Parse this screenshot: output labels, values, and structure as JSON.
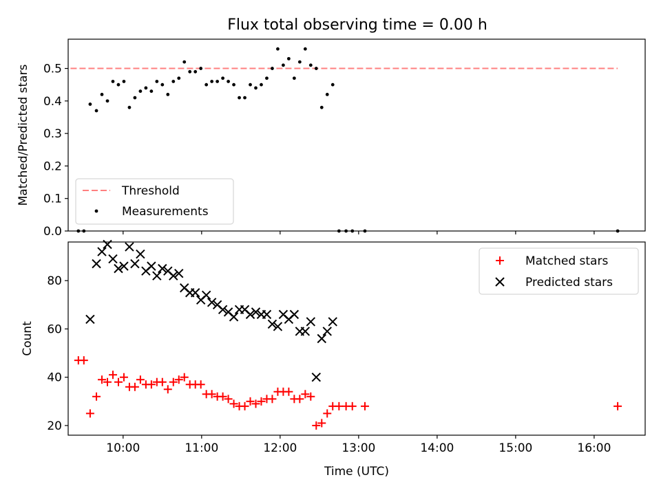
{
  "title": "Flux total observing time = 0.00 h",
  "colors": {
    "threshold": "#ff7f7f",
    "measurements": "#000000",
    "matched": "#ff0000",
    "predicted": "#000000"
  },
  "chart_data": [
    {
      "type": "scatter",
      "ylabel": "Matched/Predicted stars",
      "xlim": [
        9.3,
        16.65
      ],
      "ylim": [
        0,
        0.59
      ],
      "yticks": [
        0.0,
        0.1,
        0.2,
        0.3,
        0.4,
        0.5
      ],
      "legend": {
        "placement": "lower-left",
        "entries": [
          "Threshold",
          "Measurements"
        ]
      },
      "threshold": {
        "name": "Threshold",
        "value": 0.5,
        "x": [
          9.33,
          16.3
        ]
      },
      "series": [
        {
          "name": "Measurements",
          "points": [
            [
              9.43,
              0.0
            ],
            [
              9.5,
              0.0
            ],
            [
              9.58,
              0.39
            ],
            [
              9.66,
              0.37
            ],
            [
              9.73,
              0.42
            ],
            [
              9.8,
              0.4
            ],
            [
              9.87,
              0.46
            ],
            [
              9.94,
              0.45
            ],
            [
              10.01,
              0.46
            ],
            [
              10.08,
              0.38
            ],
            [
              10.15,
              0.41
            ],
            [
              10.22,
              0.43
            ],
            [
              10.29,
              0.44
            ],
            [
              10.36,
              0.43
            ],
            [
              10.43,
              0.46
            ],
            [
              10.5,
              0.45
            ],
            [
              10.57,
              0.42
            ],
            [
              10.64,
              0.46
            ],
            [
              10.71,
              0.47
            ],
            [
              10.78,
              0.52
            ],
            [
              10.85,
              0.49
            ],
            [
              10.92,
              0.49
            ],
            [
              10.99,
              0.5
            ],
            [
              11.06,
              0.45
            ],
            [
              11.13,
              0.46
            ],
            [
              11.2,
              0.46
            ],
            [
              11.27,
              0.47
            ],
            [
              11.34,
              0.46
            ],
            [
              11.41,
              0.45
            ],
            [
              11.48,
              0.41
            ],
            [
              11.55,
              0.41
            ],
            [
              11.62,
              0.45
            ],
            [
              11.69,
              0.44
            ],
            [
              11.76,
              0.45
            ],
            [
              11.83,
              0.47
            ],
            [
              11.9,
              0.5
            ],
            [
              11.97,
              0.56
            ],
            [
              12.04,
              0.51
            ],
            [
              12.11,
              0.53
            ],
            [
              12.18,
              0.47
            ],
            [
              12.25,
              0.52
            ],
            [
              12.32,
              0.56
            ],
            [
              12.39,
              0.51
            ],
            [
              12.46,
              0.5
            ],
            [
              12.53,
              0.38
            ],
            [
              12.6,
              0.42
            ],
            [
              12.67,
              0.45
            ],
            [
              12.75,
              0.0
            ],
            [
              12.84,
              0.0
            ],
            [
              12.92,
              0.0
            ],
            [
              13.08,
              0.0
            ],
            [
              16.3,
              0.0
            ]
          ]
        }
      ]
    },
    {
      "type": "scatter",
      "xlabel": "Time (UTC)",
      "ylabel": "Count",
      "xlim": [
        9.3,
        16.65
      ],
      "ylim": [
        16,
        96
      ],
      "yticks": [
        20,
        40,
        60,
        80
      ],
      "xticks": [
        "10:00",
        "11:00",
        "12:00",
        "13:00",
        "14:00",
        "15:00",
        "16:00"
      ],
      "xtick_values": [
        10,
        11,
        12,
        13,
        14,
        15,
        16
      ],
      "legend": {
        "placement": "top-right",
        "entries": [
          "Matched stars",
          "Predicted stars"
        ]
      },
      "series": [
        {
          "name": "Matched stars",
          "marker": "plus",
          "points": [
            [
              9.43,
              47
            ],
            [
              9.5,
              47
            ],
            [
              9.58,
              25
            ],
            [
              9.66,
              32
            ],
            [
              9.73,
              39
            ],
            [
              9.8,
              38
            ],
            [
              9.87,
              41
            ],
            [
              9.94,
              38
            ],
            [
              10.01,
              40
            ],
            [
              10.08,
              36
            ],
            [
              10.15,
              36
            ],
            [
              10.22,
              39
            ],
            [
              10.29,
              37
            ],
            [
              10.36,
              37
            ],
            [
              10.43,
              38
            ],
            [
              10.5,
              38
            ],
            [
              10.57,
              35
            ],
            [
              10.64,
              38
            ],
            [
              10.71,
              39
            ],
            [
              10.78,
              40
            ],
            [
              10.85,
              37
            ],
            [
              10.92,
              37
            ],
            [
              10.99,
              37
            ],
            [
              11.06,
              33
            ],
            [
              11.13,
              33
            ],
            [
              11.2,
              32
            ],
            [
              11.27,
              32
            ],
            [
              11.34,
              31
            ],
            [
              11.41,
              29
            ],
            [
              11.48,
              28
            ],
            [
              11.55,
              28
            ],
            [
              11.62,
              30
            ],
            [
              11.69,
              29
            ],
            [
              11.76,
              30
            ],
            [
              11.83,
              31
            ],
            [
              11.9,
              31
            ],
            [
              11.97,
              34
            ],
            [
              12.04,
              34
            ],
            [
              12.11,
              34
            ],
            [
              12.18,
              31
            ],
            [
              12.25,
              31
            ],
            [
              12.32,
              33
            ],
            [
              12.39,
              32
            ],
            [
              12.46,
              20
            ],
            [
              12.53,
              21
            ],
            [
              12.6,
              25
            ],
            [
              12.67,
              28
            ],
            [
              12.75,
              28
            ],
            [
              12.84,
              28
            ],
            [
              12.92,
              28
            ],
            [
              13.08,
              28
            ],
            [
              16.3,
              28
            ]
          ]
        },
        {
          "name": "Predicted stars",
          "marker": "x",
          "points": [
            [
              9.58,
              64
            ],
            [
              9.66,
              87
            ],
            [
              9.73,
              92
            ],
            [
              9.8,
              95
            ],
            [
              9.87,
              89
            ],
            [
              9.94,
              85
            ],
            [
              10.01,
              86
            ],
            [
              10.08,
              94
            ],
            [
              10.15,
              87
            ],
            [
              10.22,
              91
            ],
            [
              10.29,
              84
            ],
            [
              10.36,
              86
            ],
            [
              10.43,
              82
            ],
            [
              10.5,
              85
            ],
            [
              10.57,
              84
            ],
            [
              10.64,
              82
            ],
            [
              10.71,
              83
            ],
            [
              10.78,
              77
            ],
            [
              10.85,
              75
            ],
            [
              10.92,
              75
            ],
            [
              10.99,
              72
            ],
            [
              11.06,
              74
            ],
            [
              11.13,
              71
            ],
            [
              11.2,
              70
            ],
            [
              11.27,
              68
            ],
            [
              11.34,
              67
            ],
            [
              11.41,
              65
            ],
            [
              11.48,
              68
            ],
            [
              11.55,
              68
            ],
            [
              11.62,
              66
            ],
            [
              11.69,
              67
            ],
            [
              11.76,
              66
            ],
            [
              11.83,
              66
            ],
            [
              11.9,
              62
            ],
            [
              11.97,
              61
            ],
            [
              12.04,
              66
            ],
            [
              12.11,
              64
            ],
            [
              12.18,
              66
            ],
            [
              12.25,
              59
            ],
            [
              12.32,
              59
            ],
            [
              12.39,
              63
            ],
            [
              12.46,
              40
            ],
            [
              12.53,
              56
            ],
            [
              12.6,
              59
            ],
            [
              12.67,
              63
            ]
          ]
        }
      ]
    }
  ]
}
